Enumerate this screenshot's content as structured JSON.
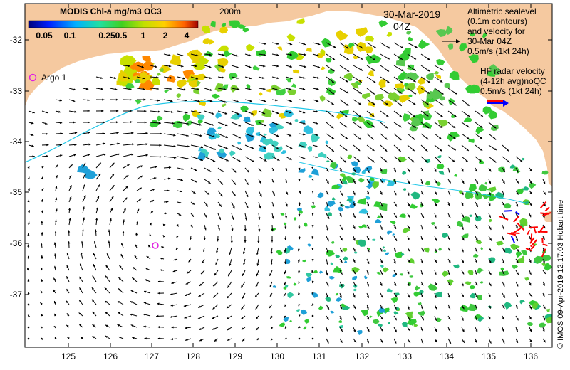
{
  "colorbar": {
    "title": "MODIS Chl-a mg/m3 OC3",
    "labels": [
      "0.05",
      "0.1",
      "0.25",
      "0.5",
      "1",
      "2",
      "4"
    ]
  },
  "isobath_label": "200m",
  "date_line1": "30-Mar-2019",
  "date_line2": "04Z",
  "altimetry_legend": [
    "Altimetric sealevel",
    "(0.1m contours)",
    "and velocity for",
    "30-Mar 04Z",
    "0.5m/s (1kt 24h)"
  ],
  "hf_radar_legend": [
    "HF radar velocity",
    "(4-12h avg)noQC",
    "0.5m/s (1kt 24h)"
  ],
  "argo_label": "Argo 1",
  "credit": "© IMOS 09-Apr-2019 12:17:03 Hobart time",
  "x_ticks": [
    "125",
    "126",
    "127",
    "128",
    "129",
    "130",
    "131",
    "132",
    "133",
    "134",
    "135",
    "136"
  ],
  "y_ticks": [
    "-32",
    "-33",
    "-34",
    "-35",
    "-36",
    "-37"
  ],
  "colors": {
    "land": "#f5c9a0",
    "ocean": "#ffffff",
    "arrow": "#000000",
    "hf_arrow_red": "#ff0000",
    "hf_arrow_blue": "#0000ff",
    "argo": "#e020e0",
    "chl_low": "#1fa0d8",
    "chl_mid": "#33cc33",
    "chl_high": "#e8d000",
    "chl_max": "#ff8800"
  }
}
